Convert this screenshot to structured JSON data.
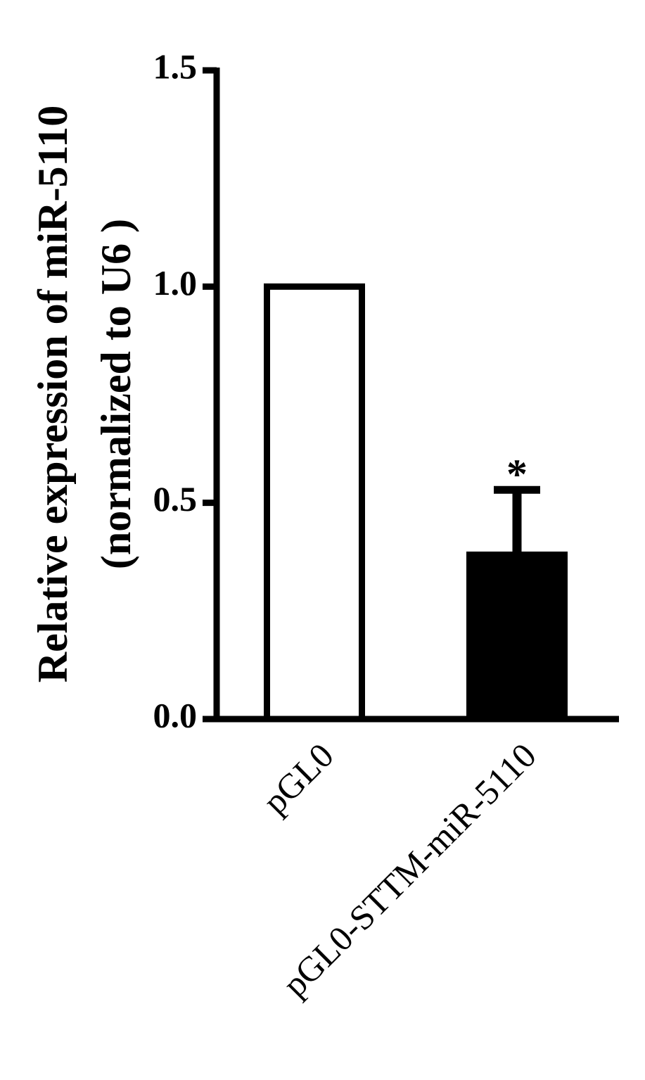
{
  "chart_data": {
    "type": "bar",
    "ylabel": [
      "Relative expression of miR-5110",
      "(normalized to U6 )"
    ],
    "categories": [
      "pGL0",
      "pGL0-STTM-miR-5110"
    ],
    "values": [
      1.0,
      0.38
    ],
    "errors": [
      null,
      0.15
    ],
    "colors": [
      "#ffffff",
      "#000000"
    ],
    "edgecolor": "#000000",
    "annotations": [
      {
        "text": "*",
        "category": 1
      }
    ],
    "ylim": [
      0,
      1.5
    ],
    "yticks": [
      {
        "value": 0,
        "label": "0.0"
      },
      {
        "value": 0.5,
        "label": "0.5"
      },
      {
        "value": 1,
        "label": "1.0"
      },
      {
        "value": 1.5,
        "label": "1.5"
      }
    ],
    "grid": false
  }
}
